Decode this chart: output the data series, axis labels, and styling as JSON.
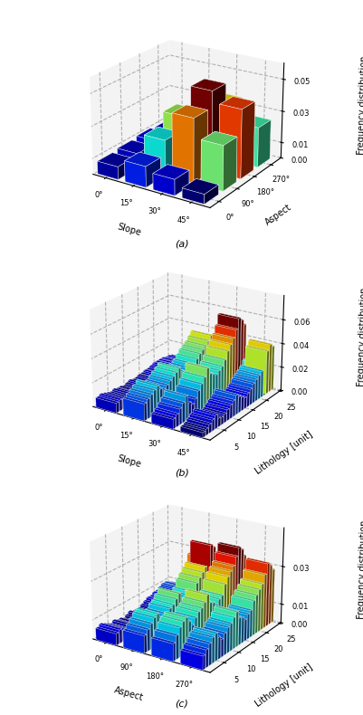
{
  "chart_a": {
    "slope_labels": [
      "0°",
      "15°",
      "30°",
      "45°"
    ],
    "aspect_labels": [
      "0°",
      "90°",
      "180°",
      "270°"
    ],
    "zlabel": "Frequency distribution",
    "xlabel_slope": "Slope",
    "xlabel_aspect": "Aspect",
    "zlim": [
      0,
      0.06
    ],
    "zticks": [
      0.0,
      0.01,
      0.03,
      0.05
    ],
    "values": [
      [
        0.008,
        0.009,
        0.01,
        0.009
      ],
      [
        0.013,
        0.022,
        0.03,
        0.018
      ],
      [
        0.01,
        0.04,
        0.05,
        0.035
      ],
      [
        0.006,
        0.028,
        0.043,
        0.025
      ]
    ]
  },
  "chart_b": {
    "slope_labels": [
      "0°",
      "15°",
      "30°",
      "45°"
    ],
    "litho_ticks": [
      5,
      10,
      15,
      20,
      25
    ],
    "zlabel": "Frequency distribution",
    "xlabel_slope": "Slope",
    "xlabel_litho": "Lithology [unit]",
    "zlim": [
      0,
      0.08
    ],
    "zticks": [
      0.0,
      0.02,
      0.04,
      0.06
    ],
    "n_litho": 25,
    "values": [
      [
        0.008,
        0.009,
        0.008,
        0.007,
        0.006,
        0.007,
        0.006,
        0.006,
        0.005,
        0.006,
        0.007,
        0.006,
        0.006,
        0.007,
        0.007,
        0.008,
        0.008,
        0.009,
        0.01,
        0.01,
        0.01,
        0.01,
        0.009,
        0.009,
        0.008
      ],
      [
        0.014,
        0.016,
        0.018,
        0.02,
        0.022,
        0.018,
        0.016,
        0.018,
        0.02,
        0.022,
        0.024,
        0.026,
        0.022,
        0.02,
        0.018,
        0.02,
        0.022,
        0.025,
        0.028,
        0.03,
        0.032,
        0.035,
        0.038,
        0.036,
        0.032
      ],
      [
        0.008,
        0.01,
        0.013,
        0.016,
        0.02,
        0.013,
        0.01,
        0.013,
        0.018,
        0.022,
        0.026,
        0.032,
        0.026,
        0.024,
        0.022,
        0.024,
        0.026,
        0.03,
        0.036,
        0.04,
        0.044,
        0.05,
        0.058,
        0.055,
        0.05
      ],
      [
        0.004,
        0.005,
        0.007,
        0.009,
        0.011,
        0.007,
        0.006,
        0.007,
        0.009,
        0.011,
        0.013,
        0.016,
        0.013,
        0.011,
        0.009,
        0.011,
        0.013,
        0.016,
        0.018,
        0.02,
        0.022,
        0.026,
        0.036,
        0.04,
        0.037
      ]
    ]
  },
  "chart_c": {
    "aspect_labels": [
      "0°",
      "90°",
      "180°",
      "270°"
    ],
    "litho_ticks": [
      5,
      10,
      15,
      20,
      25
    ],
    "zlabel": "Frequency distribution",
    "xlabel_aspect": "Aspect",
    "xlabel_litho": "Lithology [unit]",
    "zlim": [
      0,
      0.05
    ],
    "zticks": [
      0.0,
      0.01,
      0.03
    ],
    "n_litho": 25,
    "values": [
      [
        0.006,
        0.007,
        0.006,
        0.005,
        0.004,
        0.005,
        0.004,
        0.004,
        0.003,
        0.004,
        0.005,
        0.004,
        0.004,
        0.004,
        0.005,
        0.006,
        0.007,
        0.007,
        0.008,
        0.008,
        0.009,
        0.01,
        0.01,
        0.009,
        0.008
      ],
      [
        0.009,
        0.011,
        0.013,
        0.015,
        0.016,
        0.013,
        0.011,
        0.013,
        0.015,
        0.016,
        0.018,
        0.02,
        0.016,
        0.015,
        0.013,
        0.015,
        0.016,
        0.02,
        0.022,
        0.024,
        0.026,
        0.03,
        0.036,
        0.034,
        0.03
      ],
      [
        0.009,
        0.012,
        0.015,
        0.017,
        0.018,
        0.015,
        0.012,
        0.015,
        0.017,
        0.018,
        0.02,
        0.023,
        0.018,
        0.017,
        0.015,
        0.017,
        0.018,
        0.023,
        0.026,
        0.028,
        0.03,
        0.034,
        0.038,
        0.036,
        0.032
      ],
      [
        0.007,
        0.009,
        0.011,
        0.013,
        0.014,
        0.011,
        0.009,
        0.011,
        0.013,
        0.014,
        0.016,
        0.018,
        0.014,
        0.013,
        0.011,
        0.013,
        0.014,
        0.018,
        0.02,
        0.022,
        0.024,
        0.028,
        0.033,
        0.031,
        0.028
      ]
    ]
  },
  "pane_color": "#e8e8e8",
  "font_size": 7,
  "label_fontsize": 7,
  "tick_fontsize": 6
}
